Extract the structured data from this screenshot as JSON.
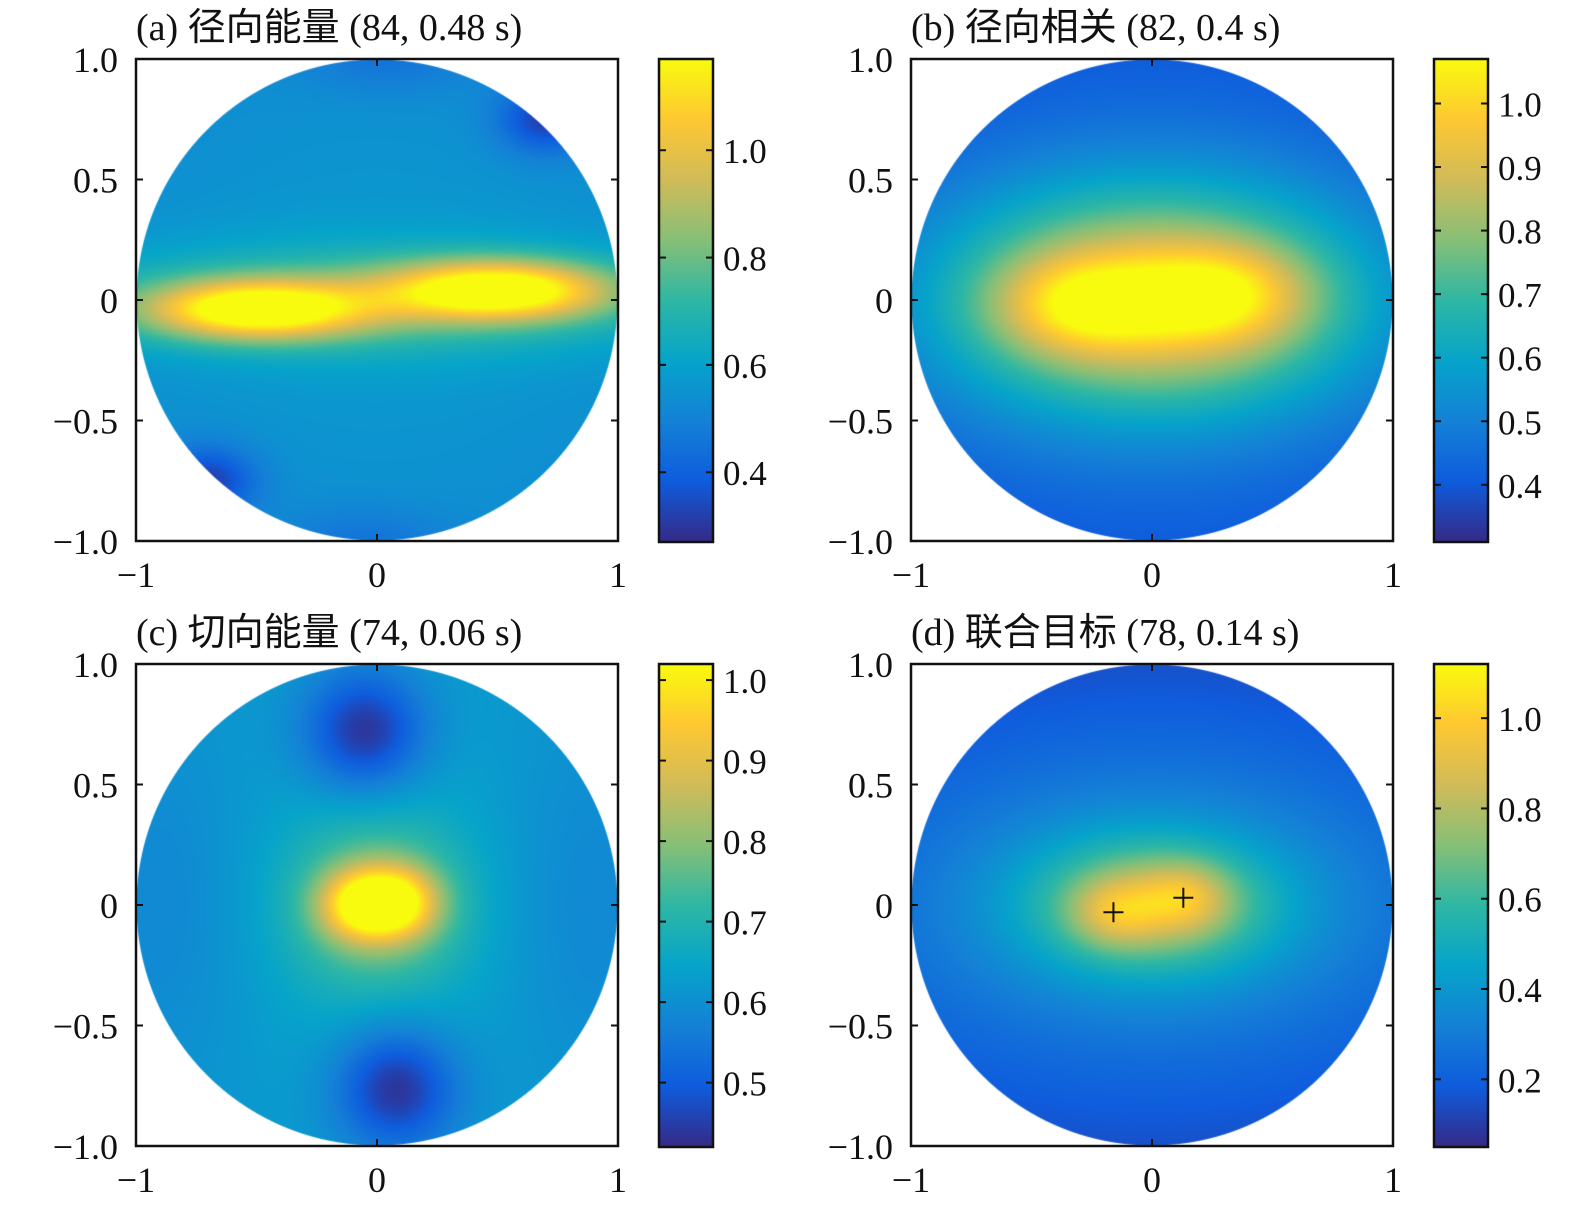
{
  "colormap": {
    "name": "parula",
    "stops": [
      "#352a87",
      "#0f5cdd",
      "#1481d6",
      "#06a4ca",
      "#2eb7a4",
      "#87bf77",
      "#d1bb59",
      "#fec832",
      "#f9fb0e"
    ]
  },
  "chart_data": [
    {
      "type": "heatmap",
      "title": "(a) 径向能量 (84, 0.48 s)",
      "domain": "unit-disk",
      "xlim": [
        -1,
        1
      ],
      "ylim": [
        -1,
        1
      ],
      "x_ticks": [
        "−1",
        "0",
        "1"
      ],
      "y_ticks": [
        "1.0",
        "0.5",
        "0",
        "−0.5",
        "−1.0"
      ],
      "colorbar": {
        "range": [
          0.27,
          1.17
        ],
        "ticks": [
          0.4,
          0.6,
          0.8,
          1.0
        ],
        "tick_labels": [
          "0.4",
          "0.6",
          "0.8",
          "1.0"
        ]
      },
      "field": {
        "base": 0.52,
        "gaussians": [
          {
            "x": -0.5,
            "y": -0.04,
            "sx": 0.32,
            "sy": 0.085,
            "a": 0.62
          },
          {
            "x": 0.5,
            "y": 0.04,
            "sx": 0.32,
            "sy": 0.085,
            "a": 0.62
          },
          {
            "x": 0.0,
            "y": 0.0,
            "sx": 1.0,
            "sy": 0.16,
            "a": 0.2
          },
          {
            "x": 0.0,
            "y": 0.0,
            "sx": 0.8,
            "sy": 0.7,
            "a": 0.05
          },
          {
            "x": 0.7,
            "y": 0.75,
            "sx": 0.14,
            "sy": 0.1,
            "a": -0.22
          },
          {
            "x": -0.7,
            "y": -0.75,
            "sx": 0.14,
            "sy": 0.1,
            "a": -0.22
          },
          {
            "x": 0.05,
            "y": 1.0,
            "sx": 0.25,
            "sy": 0.1,
            "a": -0.08
          },
          {
            "x": -0.05,
            "y": -1.0,
            "sx": 0.25,
            "sy": 0.1,
            "a": -0.08
          }
        ]
      },
      "markers": []
    },
    {
      "type": "heatmap",
      "title": "(b) 径向相关 (82, 0.4 s)",
      "domain": "unit-disk",
      "xlim": [
        -1,
        1
      ],
      "ylim": [
        -1,
        1
      ],
      "x_ticks": [
        "−1",
        "0",
        "1"
      ],
      "y_ticks": [
        "1.0",
        "0.5",
        "0",
        "−0.5",
        "−1.0"
      ],
      "colorbar": {
        "range": [
          0.31,
          1.07
        ],
        "ticks": [
          0.4,
          0.5,
          0.6,
          0.7,
          0.8,
          0.9,
          1.0
        ],
        "tick_labels": [
          "0.4",
          "0.5",
          "0.6",
          "0.7",
          "0.8",
          "0.9",
          "1.0"
        ]
      },
      "field": {
        "base": 0.33,
        "gaussians": [
          {
            "x": -0.3,
            "y": -0.02,
            "sx": 0.24,
            "sy": 0.14,
            "a": 0.22
          },
          {
            "x": 0.3,
            "y": 0.02,
            "sx": 0.24,
            "sy": 0.14,
            "a": 0.22
          },
          {
            "x": 0.0,
            "y": 0.0,
            "sx": 0.6,
            "sy": 0.32,
            "a": 0.5
          },
          {
            "x": 0.0,
            "y": 0.0,
            "sx": 1.2,
            "sy": 0.85,
            "a": 0.15
          }
        ]
      },
      "markers": []
    },
    {
      "type": "heatmap",
      "title": "(c) 切向能量 (74, 0.06 s)",
      "domain": "unit-disk",
      "xlim": [
        -1,
        1
      ],
      "ylim": [
        -1,
        1
      ],
      "x_ticks": [
        "−1",
        "0",
        "1"
      ],
      "y_ticks": [
        "1.0",
        "0.5",
        "0",
        "−0.5",
        "−1.0"
      ],
      "colorbar": {
        "range": [
          0.42,
          1.02
        ],
        "ticks": [
          0.5,
          0.6,
          0.7,
          0.8,
          0.9,
          1.0
        ],
        "tick_labels": [
          "0.5",
          "0.6",
          "0.7",
          "0.8",
          "0.9",
          "1.0"
        ]
      },
      "field": {
        "base": 0.62,
        "gaussians": [
          {
            "x": -0.07,
            "y": 0.0,
            "sx": 0.12,
            "sy": 0.1,
            "a": 0.25
          },
          {
            "x": 0.09,
            "y": 0.01,
            "sx": 0.12,
            "sy": 0.1,
            "a": 0.25
          },
          {
            "x": 0.0,
            "y": 0.0,
            "sx": 0.24,
            "sy": 0.22,
            "a": 0.15
          },
          {
            "x": 0.0,
            "y": 0.0,
            "sx": 0.45,
            "sy": 0.55,
            "a": 0.05
          },
          {
            "x": -0.05,
            "y": 0.72,
            "sx": 0.18,
            "sy": 0.18,
            "a": -0.2
          },
          {
            "x": 0.08,
            "y": -0.76,
            "sx": 0.18,
            "sy": 0.18,
            "a": -0.2
          },
          {
            "x": -0.85,
            "y": 0.0,
            "sx": 0.3,
            "sy": 0.55,
            "a": -0.04
          },
          {
            "x": 0.85,
            "y": 0.0,
            "sx": 0.3,
            "sy": 0.55,
            "a": -0.04
          }
        ]
      },
      "markers": []
    },
    {
      "type": "heatmap",
      "title": "(d) 联合目标 (78, 0.14 s)",
      "domain": "unit-disk",
      "xlim": [
        -1,
        1
      ],
      "ylim": [
        -1,
        1
      ],
      "x_ticks": [
        "−1",
        "0",
        "1"
      ],
      "y_ticks": [
        "1.0",
        "0.5",
        "0",
        "−0.5",
        "−1.0"
      ],
      "colorbar": {
        "range": [
          0.05,
          1.12
        ],
        "ticks": [
          0.2,
          0.4,
          0.6,
          0.8,
          1.0
        ],
        "tick_labels": [
          "0.2",
          "0.4",
          "0.6",
          "0.8",
          "1.0"
        ]
      },
      "field": {
        "base": 0.1,
        "gaussians": [
          {
            "x": -0.15,
            "y": -0.03,
            "sx": 0.13,
            "sy": 0.1,
            "a": 0.22
          },
          {
            "x": 0.14,
            "y": 0.03,
            "sx": 0.13,
            "sy": 0.1,
            "a": 0.22
          },
          {
            "x": 0.0,
            "y": 0.0,
            "sx": 0.36,
            "sy": 0.2,
            "a": 0.44
          },
          {
            "x": 0.0,
            "y": 0.0,
            "sx": 1.0,
            "sy": 0.55,
            "a": 0.28
          }
        ]
      },
      "markers": [
        {
          "x": -0.16,
          "y": -0.03
        },
        {
          "x": 0.13,
          "y": 0.03
        }
      ]
    }
  ]
}
